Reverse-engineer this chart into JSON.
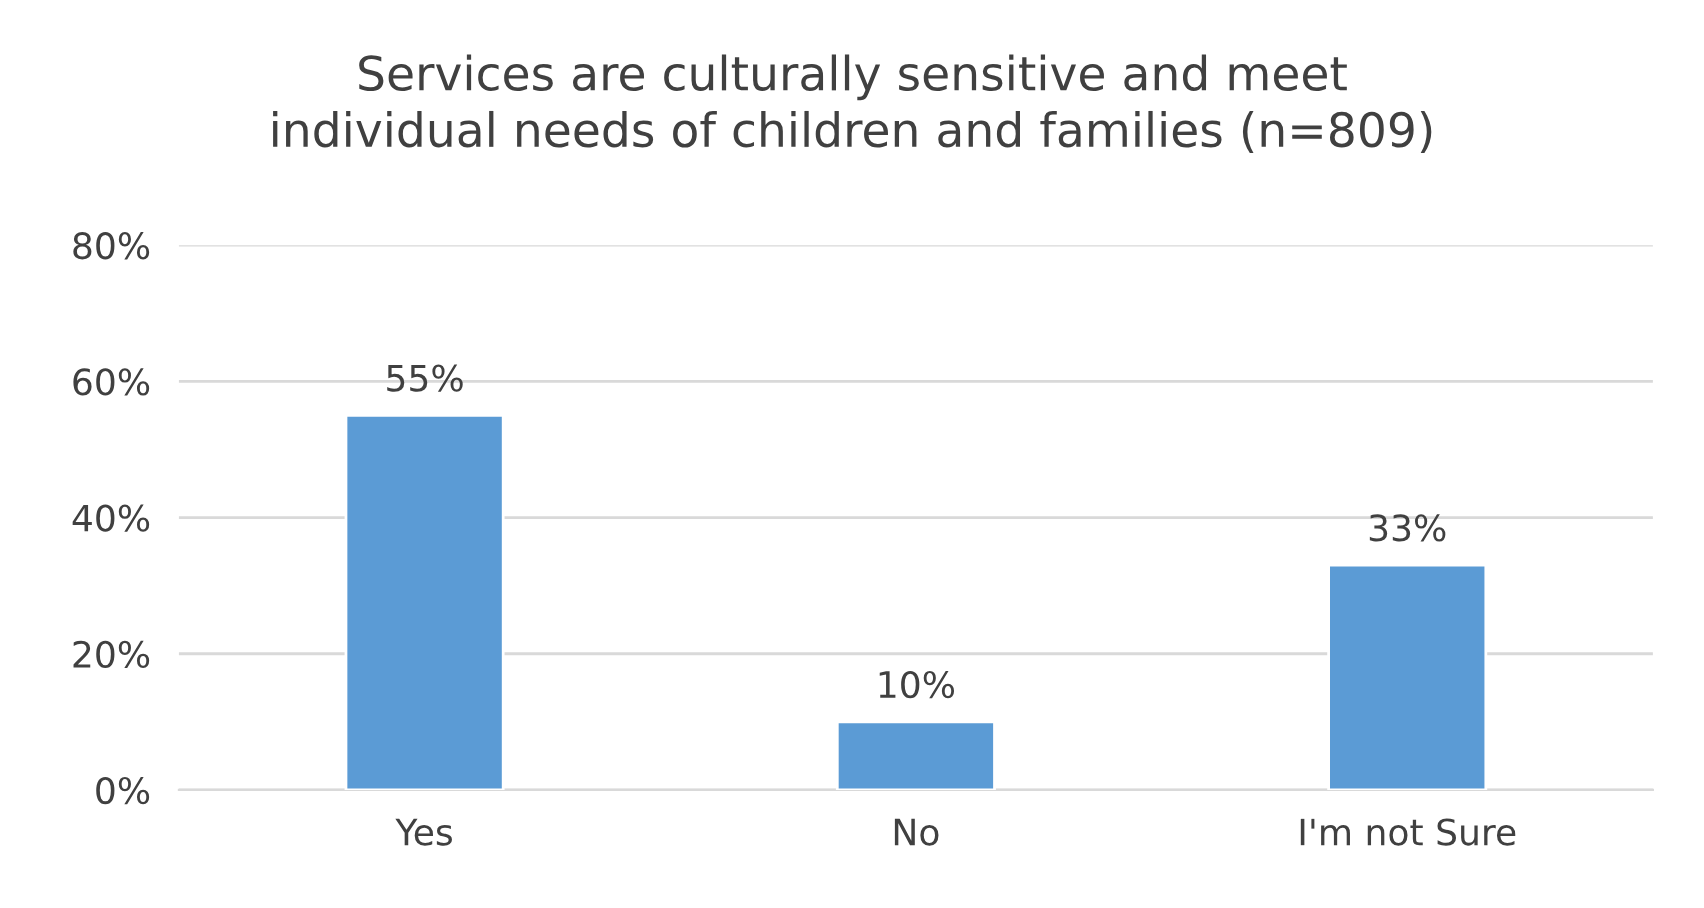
{
  "chart_data": {
    "type": "bar",
    "title": "Services are culturally sensitive and meet\nindividual needs of children and families (n=809)",
    "categories": [
      "Yes",
      "No",
      "I'm not Sure"
    ],
    "values": [
      55,
      10,
      33
    ],
    "value_labels": [
      "55%",
      "10%",
      "33%"
    ],
    "color": "#5b9bd5",
    "ylim": [
      0,
      80
    ],
    "yticks": [
      {
        "value": 0,
        "label": "0%"
      },
      {
        "value": 20,
        "label": "20%"
      },
      {
        "value": 40,
        "label": "40%"
      },
      {
        "value": 60,
        "label": "60%"
      },
      {
        "value": 80,
        "label": "80%"
      }
    ],
    "grid": "y",
    "legend": false
  }
}
